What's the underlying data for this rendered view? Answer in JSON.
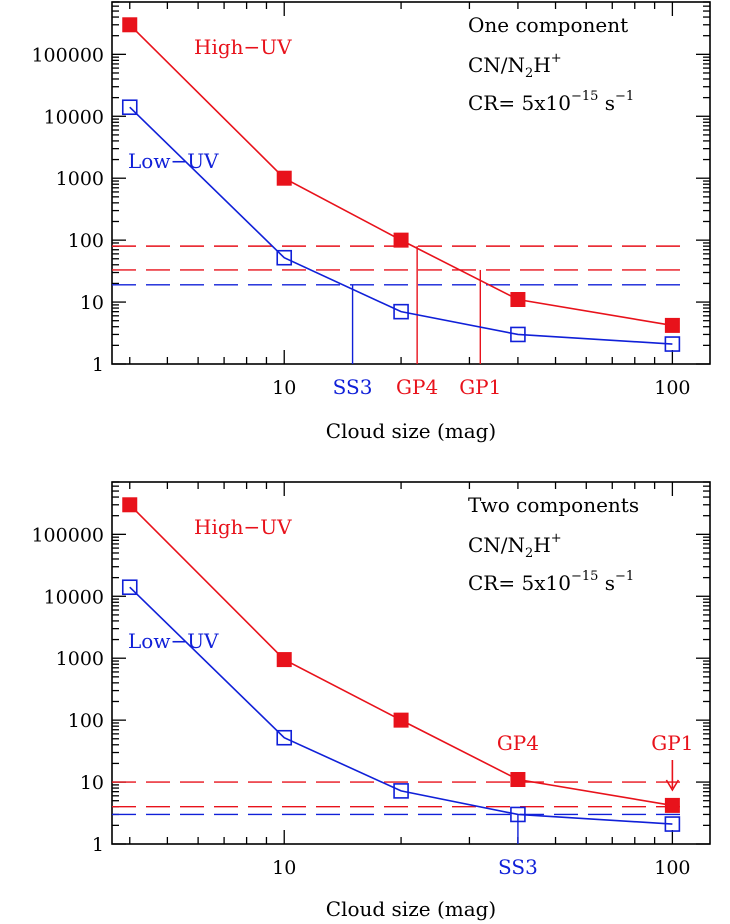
{
  "chart_data": [
    {
      "type": "line",
      "title": "",
      "xlabel": "Cloud size (mag)",
      "ylabel": "",
      "xscale": "log",
      "yscale": "log",
      "xlim": [
        3.6,
        125
      ],
      "ylim": [
        1,
        700000
      ],
      "x_ticks": [
        10,
        100
      ],
      "y_ticks": [
        1,
        10,
        100,
        1000,
        10000,
        100000
      ],
      "y_tick_labels": [
        "1",
        "10",
        "100",
        "1000",
        "10000",
        "100000"
      ],
      "x_tick_labels": [
        "10",
        "100"
      ],
      "annotation_lines": [
        "One component",
        "CN/N",
        "2",
        "H",
        "+",
        "CR= 5x10",
        "−15",
        " s",
        "−1"
      ],
      "series": [
        {
          "name": "High−UV",
          "color": "#e8121b",
          "marker": "filled-square",
          "x": [
            4,
            10,
            20,
            40,
            100
          ],
          "y": [
            300000,
            1000,
            100,
            11,
            4.2
          ]
        },
        {
          "name": "Low−UV",
          "color": "#1020d8",
          "marker": "open-square",
          "x": [
            4,
            10,
            20,
            40,
            100
          ],
          "y": [
            14000,
            52,
            7,
            3,
            2.1
          ]
        }
      ],
      "hlines": [
        {
          "y": 80,
          "color": "#e8121b",
          "style": "dashed"
        },
        {
          "y": 33,
          "color": "#e8121b",
          "style": "dashed"
        },
        {
          "y": 19,
          "color": "#1020d8",
          "style": "dashed"
        }
      ],
      "vmarkers": [
        {
          "label": "SS3",
          "x": 15,
          "y_top": 19,
          "color": "#1020d8"
        },
        {
          "label": "GP4",
          "x": 22,
          "y_top": 80,
          "color": "#e8121b"
        },
        {
          "label": "GP1",
          "x": 32,
          "y_top": 33,
          "color": "#e8121b"
        }
      ]
    },
    {
      "type": "line",
      "title": "",
      "xlabel": "Cloud size (mag)",
      "ylabel": "",
      "xscale": "log",
      "yscale": "log",
      "xlim": [
        3.6,
        125
      ],
      "ylim": [
        1,
        700000
      ],
      "x_ticks": [
        10,
        100
      ],
      "y_ticks": [
        1,
        10,
        100,
        1000,
        10000,
        100000
      ],
      "y_tick_labels": [
        "1",
        "10",
        "100",
        "1000",
        "10000",
        "100000"
      ],
      "x_tick_labels": [
        "10",
        "100"
      ],
      "annotation_lines": [
        "Two components",
        "CN/N",
        "2",
        "H",
        "+",
        "CR= 5x10",
        "−15",
        " s",
        "−1"
      ],
      "series": [
        {
          "name": "High−UV",
          "color": "#e8121b",
          "marker": "filled-square",
          "x": [
            4,
            10,
            20,
            40,
            100
          ],
          "y": [
            300000,
            950,
            100,
            11,
            4.2
          ]
        },
        {
          "name": "Low−UV",
          "color": "#1020d8",
          "marker": "open-square",
          "x": [
            4,
            10,
            20,
            40,
            100
          ],
          "y": [
            14000,
            52,
            7.2,
            3,
            2.1
          ]
        }
      ],
      "hlines": [
        {
          "y": 10,
          "color": "#e8121b",
          "style": "dashed"
        },
        {
          "y": 4,
          "color": "#e8121b",
          "style": "dashed"
        },
        {
          "y": 3,
          "color": "#1020d8",
          "style": "dashed"
        }
      ],
      "point_labels": [
        {
          "label": "GP4",
          "x": 40,
          "color": "#e8121b"
        },
        {
          "label": "GP1",
          "x": 100,
          "color": "#e8121b",
          "arrow": true
        }
      ],
      "vmarkers": [
        {
          "label": "SS3",
          "x": 40,
          "y_top": 3,
          "color": "#1020d8"
        }
      ]
    }
  ]
}
